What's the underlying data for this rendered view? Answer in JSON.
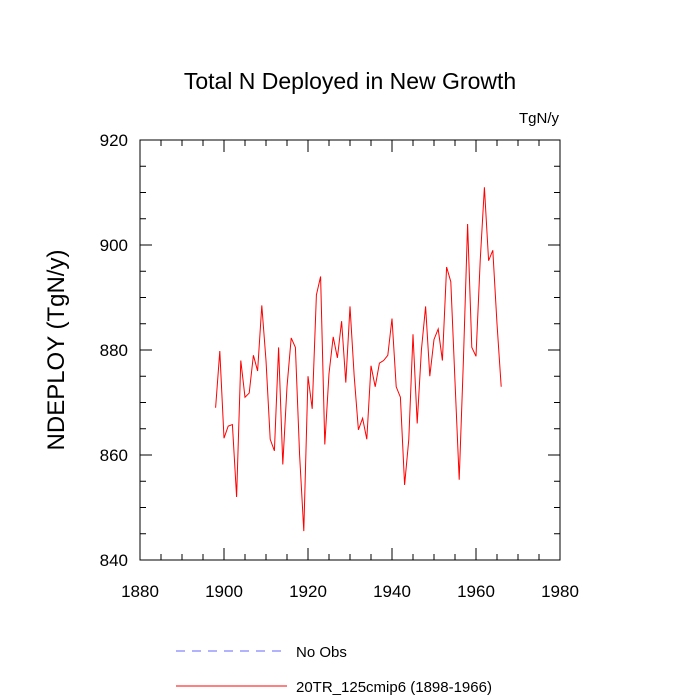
{
  "chart_data": {
    "type": "line",
    "title": "Total N Deployed in New Growth",
    "units": "TgN/y",
    "xlabel": "",
    "ylabel": "NDEPLOY  (TgN/y)",
    "xlim": [
      1880,
      1980
    ],
    "ylim": [
      840,
      920
    ],
    "xticks": [
      1880,
      1900,
      1920,
      1940,
      1960,
      1980
    ],
    "yticks": [
      840,
      860,
      880,
      900,
      920
    ],
    "x_minor_step": 5,
    "y_minor_step": 5,
    "grid": false,
    "legend_position": "bottom",
    "colors": {
      "model": "#ff0000",
      "obs": "#6666ff"
    },
    "series": [
      {
        "name": "No Obs",
        "style": "dashed",
        "x": [],
        "values": []
      },
      {
        "name": "20TR_125cmip6 (1898-1966)",
        "style": "solid",
        "x": [
          1898,
          1899,
          1900,
          1901,
          1902,
          1903,
          1904,
          1905,
          1906,
          1907,
          1908,
          1909,
          1910,
          1911,
          1912,
          1913,
          1914,
          1915,
          1916,
          1917,
          1918,
          1919,
          1920,
          1921,
          1922,
          1923,
          1924,
          1925,
          1926,
          1927,
          1928,
          1929,
          1930,
          1931,
          1932,
          1933,
          1934,
          1935,
          1936,
          1937,
          1938,
          1939,
          1940,
          1941,
          1942,
          1943,
          1944,
          1945,
          1946,
          1947,
          1948,
          1949,
          1950,
          1951,
          1952,
          1953,
          1954,
          1955,
          1956,
          1957,
          1958,
          1959,
          1960,
          1961,
          1962,
          1963,
          1964,
          1965,
          1966
        ],
        "values": [
          869.0,
          879.8,
          863.2,
          865.5,
          865.8,
          852.0,
          878.0,
          871.0,
          871.8,
          879.0,
          876.0,
          888.5,
          878.0,
          863.0,
          860.8,
          880.5,
          858.2,
          873.0,
          882.3,
          880.5,
          860.0,
          845.5,
          875.0,
          868.8,
          890.5,
          894.0,
          862.0,
          875.5,
          882.5,
          878.5,
          885.5,
          873.8,
          888.3,
          875.0,
          864.8,
          867.0,
          863.0,
          877.0,
          873.0,
          877.5,
          878.0,
          879.0,
          886.0,
          873.0,
          871.0,
          854.3,
          863.0,
          883.0,
          866.0,
          880.0,
          888.3,
          875.0,
          882.0,
          884.0,
          878.0,
          895.8,
          893.0,
          874.0,
          855.3,
          878.0,
          904.0,
          880.5,
          878.8,
          897.0,
          911.0,
          897.0,
          899.0,
          885.0,
          873.0
        ]
      }
    ]
  }
}
